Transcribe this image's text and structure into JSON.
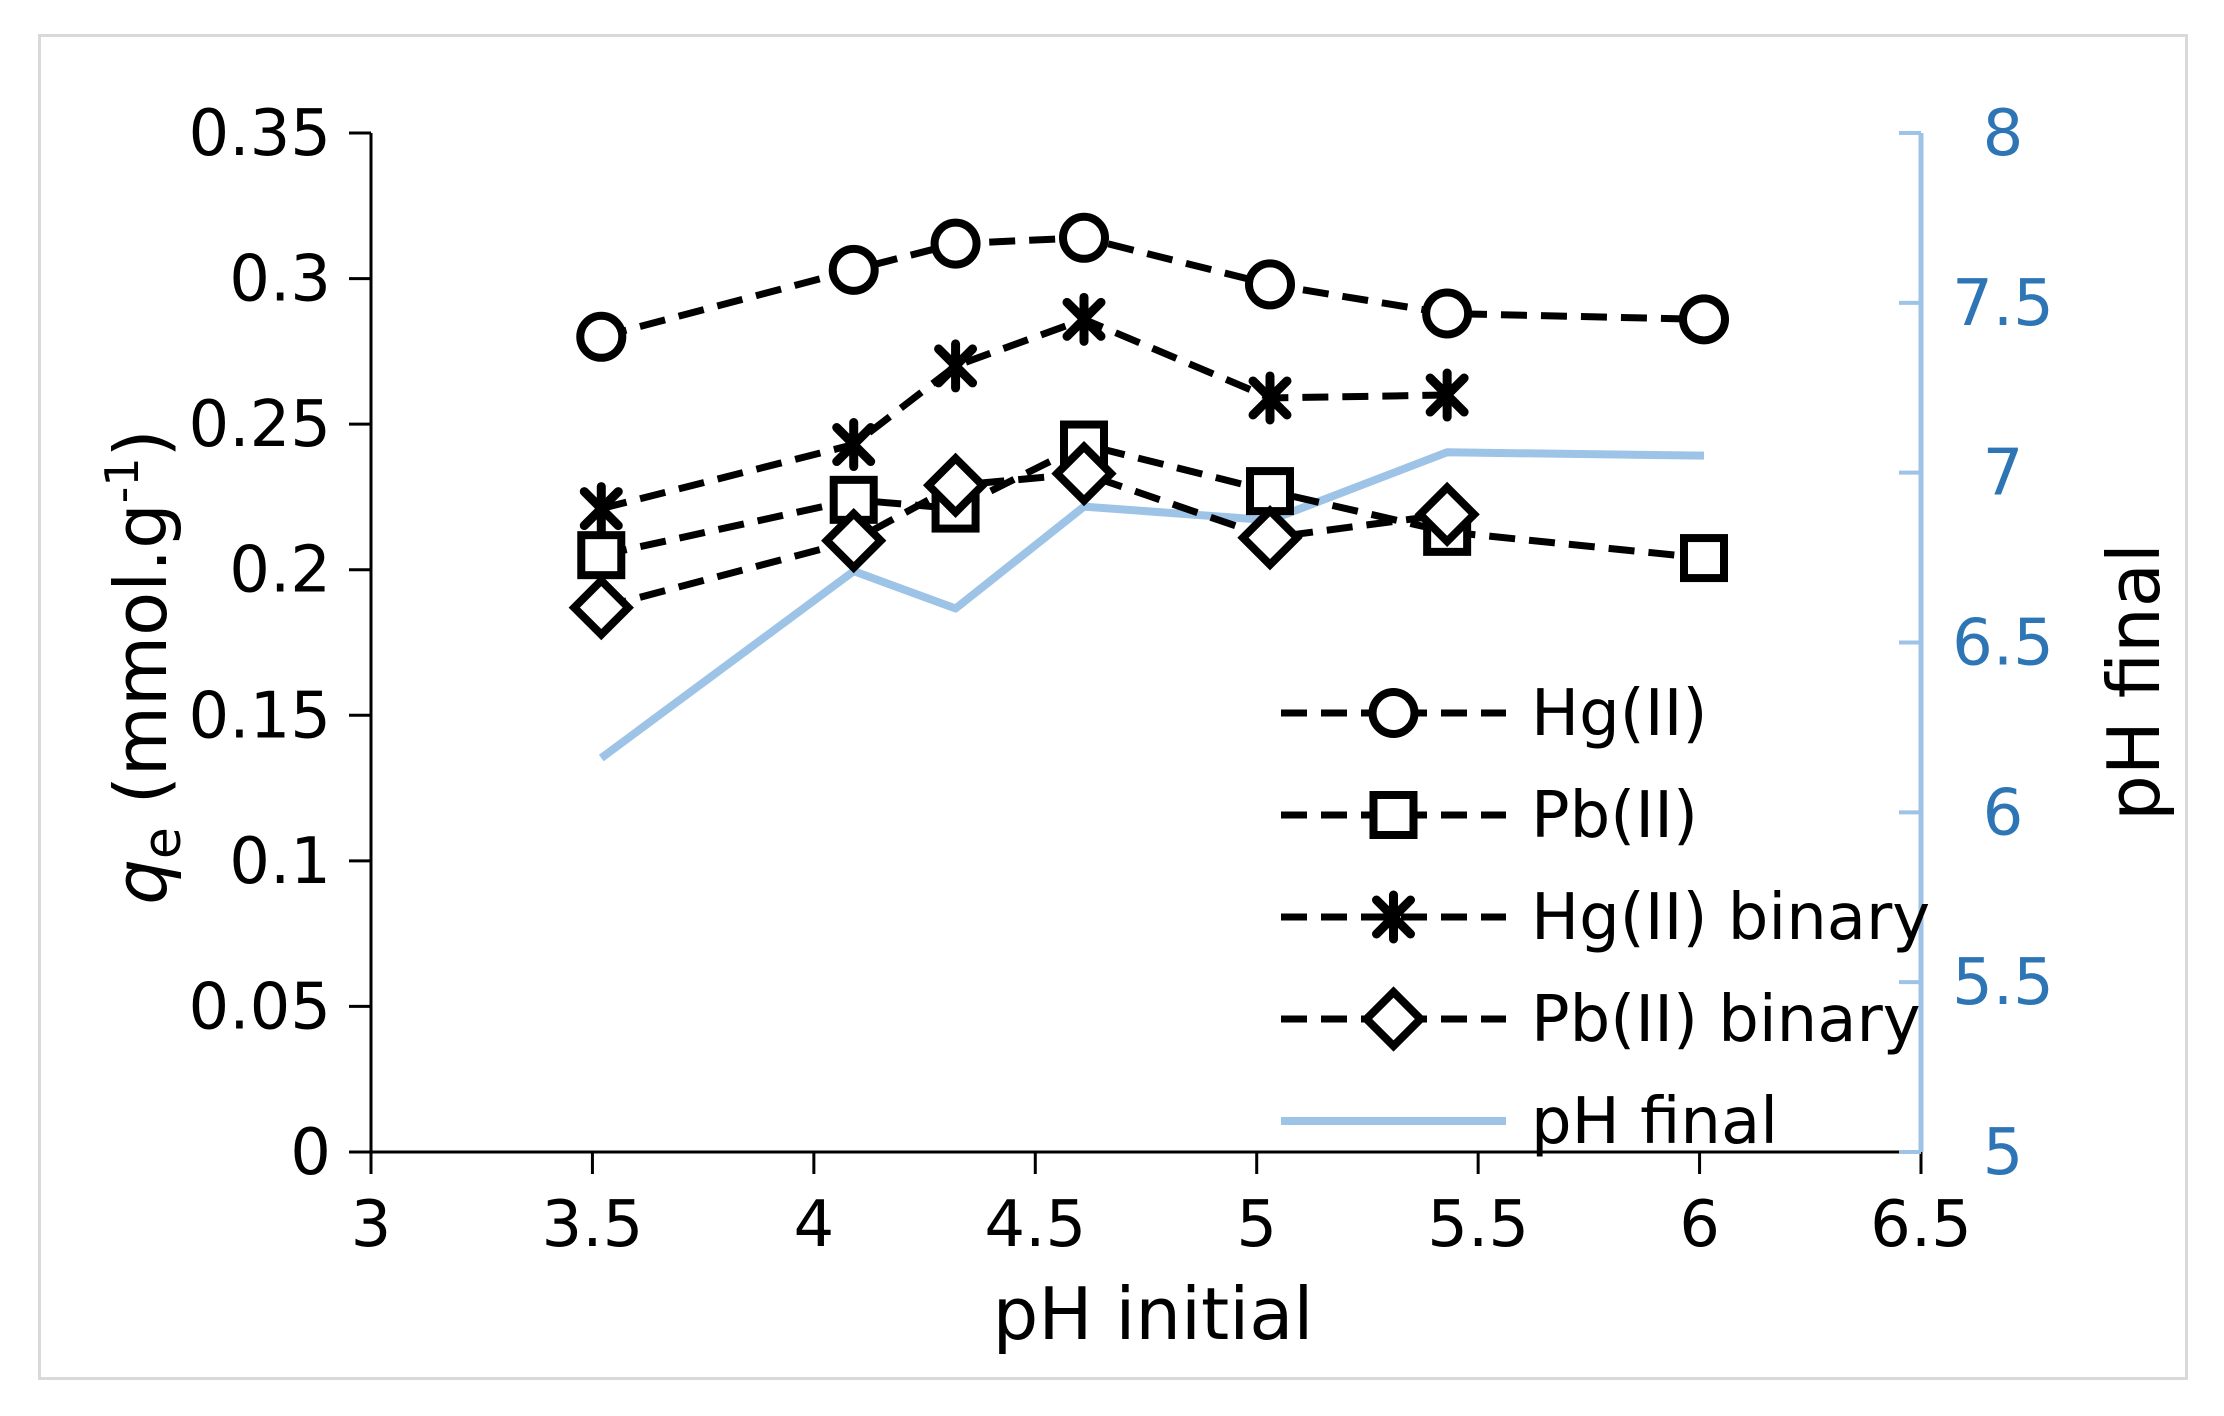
{
  "chart_data": {
    "type": "line",
    "xlabel": "pH initial",
    "ylabel": {
      "symbol": "q",
      "subscript": "e",
      "text": " (mmol.g",
      "sup": "-1",
      "close": ")"
    },
    "y2label": "pH final",
    "xlim": [
      3,
      6.5
    ],
    "ylim": [
      0,
      0.35
    ],
    "y2lim": [
      5,
      8
    ],
    "xticks": [
      "3",
      "3.5",
      "4",
      "4.5",
      "5",
      "5.5",
      "6",
      "6.5"
    ],
    "yticks": [
      "0",
      "0.05",
      "0.1",
      "0.15",
      "0.2",
      "0.25",
      "0.3",
      "0.35"
    ],
    "y2ticks": [
      "5",
      "5.5",
      "6",
      "6.5",
      "7",
      "7.5",
      "8"
    ],
    "grid": false,
    "legend_position": "bottom-right",
    "colors": {
      "primary": "#000000",
      "secondary": "#9dc3e6",
      "right_axis_text": "#2e75b6"
    },
    "series": [
      {
        "name": "Hg(II)",
        "marker": "circle",
        "axis": "left",
        "style": "dashed",
        "x": [
          3.52,
          4.09,
          4.32,
          4.61,
          5.03,
          5.43,
          6.01
        ],
        "y": [
          0.28,
          0.303,
          0.312,
          0.314,
          0.298,
          0.288,
          0.286
        ]
      },
      {
        "name": "Pb(II)",
        "marker": "square",
        "axis": "left",
        "style": "dashed",
        "x": [
          3.52,
          4.09,
          4.32,
          4.61,
          5.03,
          5.43,
          6.01
        ],
        "y": [
          0.205,
          0.224,
          0.221,
          0.243,
          0.227,
          0.213,
          0.204
        ]
      },
      {
        "name": "Hg(II) binary",
        "marker": "star",
        "axis": "left",
        "style": "dashed",
        "x": [
          3.52,
          4.09,
          4.32,
          4.61,
          5.03,
          5.43
        ],
        "y": [
          0.221,
          0.243,
          0.27,
          0.286,
          0.259,
          0.26
        ]
      },
      {
        "name": "Pb(II) binary",
        "marker": "diamond",
        "axis": "left",
        "style": "dashed",
        "x": [
          3.52,
          4.09,
          4.32,
          4.61,
          5.03,
          5.43
        ],
        "y": [
          0.187,
          0.21,
          0.229,
          0.233,
          0.211,
          0.219
        ]
      },
      {
        "name": "pH final",
        "marker": "none",
        "axis": "right",
        "style": "solid",
        "x": [
          3.52,
          4.09,
          4.32,
          4.61,
          5.03,
          5.43,
          6.01
        ],
        "y": [
          6.16,
          6.71,
          6.6,
          6.9,
          6.86,
          7.06,
          7.05
        ]
      }
    ]
  }
}
